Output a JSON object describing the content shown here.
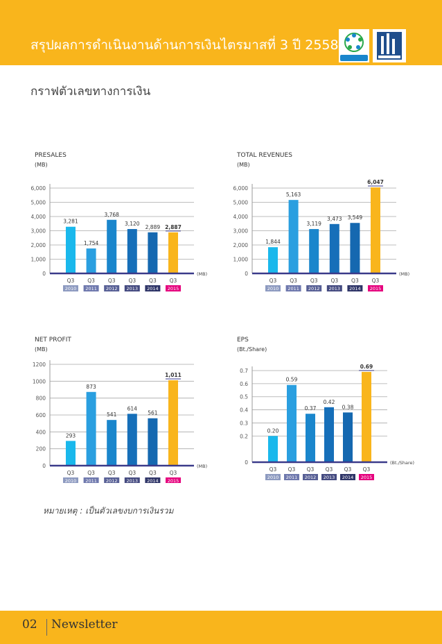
{
  "header": {
    "title": "สรุปผลการดำเนินงานด้านการเงินไตรมาสที่ 3 ปี 2558",
    "logo1_text": "ชุมชนน่าอยู่",
    "logo2_text": ""
  },
  "subtitle": "กราฟตัวเลขทางการเงิน",
  "note": "หมายเหตุ : เป็นตัวเลขงบการเงินรวม",
  "footer": {
    "page": "02",
    "label": "Newsletter"
  },
  "colors": {
    "series": [
      "#1ab8ec",
      "#2a9fe0",
      "#1a86cc",
      "#166fb9",
      "#1568b0",
      "#f9b51c"
    ],
    "year_badges": [
      "#8d9ac0",
      "#6e78ad",
      "#575f95",
      "#444a80",
      "#2f3568",
      "#e5007d"
    ],
    "emphasis_line": "#3a3a8a"
  },
  "chart_data": [
    {
      "type": "bar",
      "title": "PRESALES",
      "unit_label": "(MB)",
      "axis_unit": "(MB)",
      "categories": [
        "Q3",
        "Q3",
        "Q3",
        "Q3",
        "Q3",
        "Q3"
      ],
      "years": [
        "2010",
        "2011",
        "2012",
        "2013",
        "2014",
        "2015"
      ],
      "values": [
        3281,
        1754,
        3768,
        3120,
        2889,
        2887
      ],
      "value_labels": [
        "3,281",
        "1,754",
        "3,768",
        "3,120",
        "2,889",
        "2,887"
      ],
      "ylim": [
        0,
        6000
      ],
      "yticks": [
        0,
        1000,
        2000,
        3000,
        4000,
        5000,
        6000
      ],
      "ytick_labels": [
        "0",
        "1,000",
        "2,000",
        "3,000",
        "4,000",
        "5,000",
        "6,000"
      ],
      "grid": true
    },
    {
      "type": "bar",
      "title": "TOTAL  REVENUES",
      "unit_label": "(MB)",
      "axis_unit": "(MB)",
      "categories": [
        "Q3",
        "Q3",
        "Q3",
        "Q3",
        "Q3",
        "Q3"
      ],
      "years": [
        "2010",
        "2011",
        "2012",
        "2013",
        "2014",
        "2015"
      ],
      "values": [
        1844,
        5163,
        3119,
        3473,
        3549,
        6047
      ],
      "value_labels": [
        "1,844",
        "5,163",
        "3,119",
        "3,473",
        "3,549",
        "6,047"
      ],
      "ylim": [
        0,
        6000
      ],
      "yticks": [
        0,
        1000,
        2000,
        3000,
        4000,
        5000,
        6000
      ],
      "ytick_labels": [
        "0",
        "1,000",
        "2,000",
        "3,000",
        "4,000",
        "5,000",
        "6,000"
      ],
      "grid": true
    },
    {
      "type": "bar",
      "title": "NET  PROFIT",
      "unit_label": "(MB)",
      "axis_unit": "(MB)",
      "categories": [
        "Q3",
        "Q3",
        "Q3",
        "Q3",
        "Q3",
        "Q3"
      ],
      "years": [
        "2010",
        "2011",
        "2012",
        "2013",
        "2014",
        "2015"
      ],
      "values": [
        293,
        873,
        541,
        614,
        561,
        1011
      ],
      "value_labels": [
        "293",
        "873",
        "541",
        "614",
        "561",
        "1,011"
      ],
      "ylim": [
        0,
        1200
      ],
      "yticks": [
        0,
        200,
        400,
        600,
        800,
        1000,
        1200
      ],
      "ytick_labels": [
        "0",
        "200",
        "400",
        "600",
        "800",
        "1000",
        "1200"
      ],
      "grid": true
    },
    {
      "type": "bar",
      "title": "EPS",
      "unit_label": "(Bt./Share)",
      "axis_unit": "(Bt./Share)",
      "categories": [
        "Q3",
        "Q3",
        "Q3",
        "Q3",
        "Q3",
        "Q3"
      ],
      "years": [
        "2010",
        "2011",
        "2012",
        "2013",
        "2014",
        "2015"
      ],
      "values": [
        0.2,
        0.59,
        0.37,
        0.42,
        0.38,
        0.69
      ],
      "value_labels": [
        "0.20",
        "0.59",
        "0.37",
        "0.42",
        "0.38",
        "0.69"
      ],
      "ylim": [
        0,
        0.7
      ],
      "yticks": [
        0,
        0.2,
        0.3,
        0.4,
        0.5,
        0.6,
        0.7
      ],
      "ytick_labels": [
        "0",
        "0.2",
        "0.3",
        "0.4",
        "0.5",
        "0.6",
        "0.7"
      ],
      "grid": true
    }
  ]
}
